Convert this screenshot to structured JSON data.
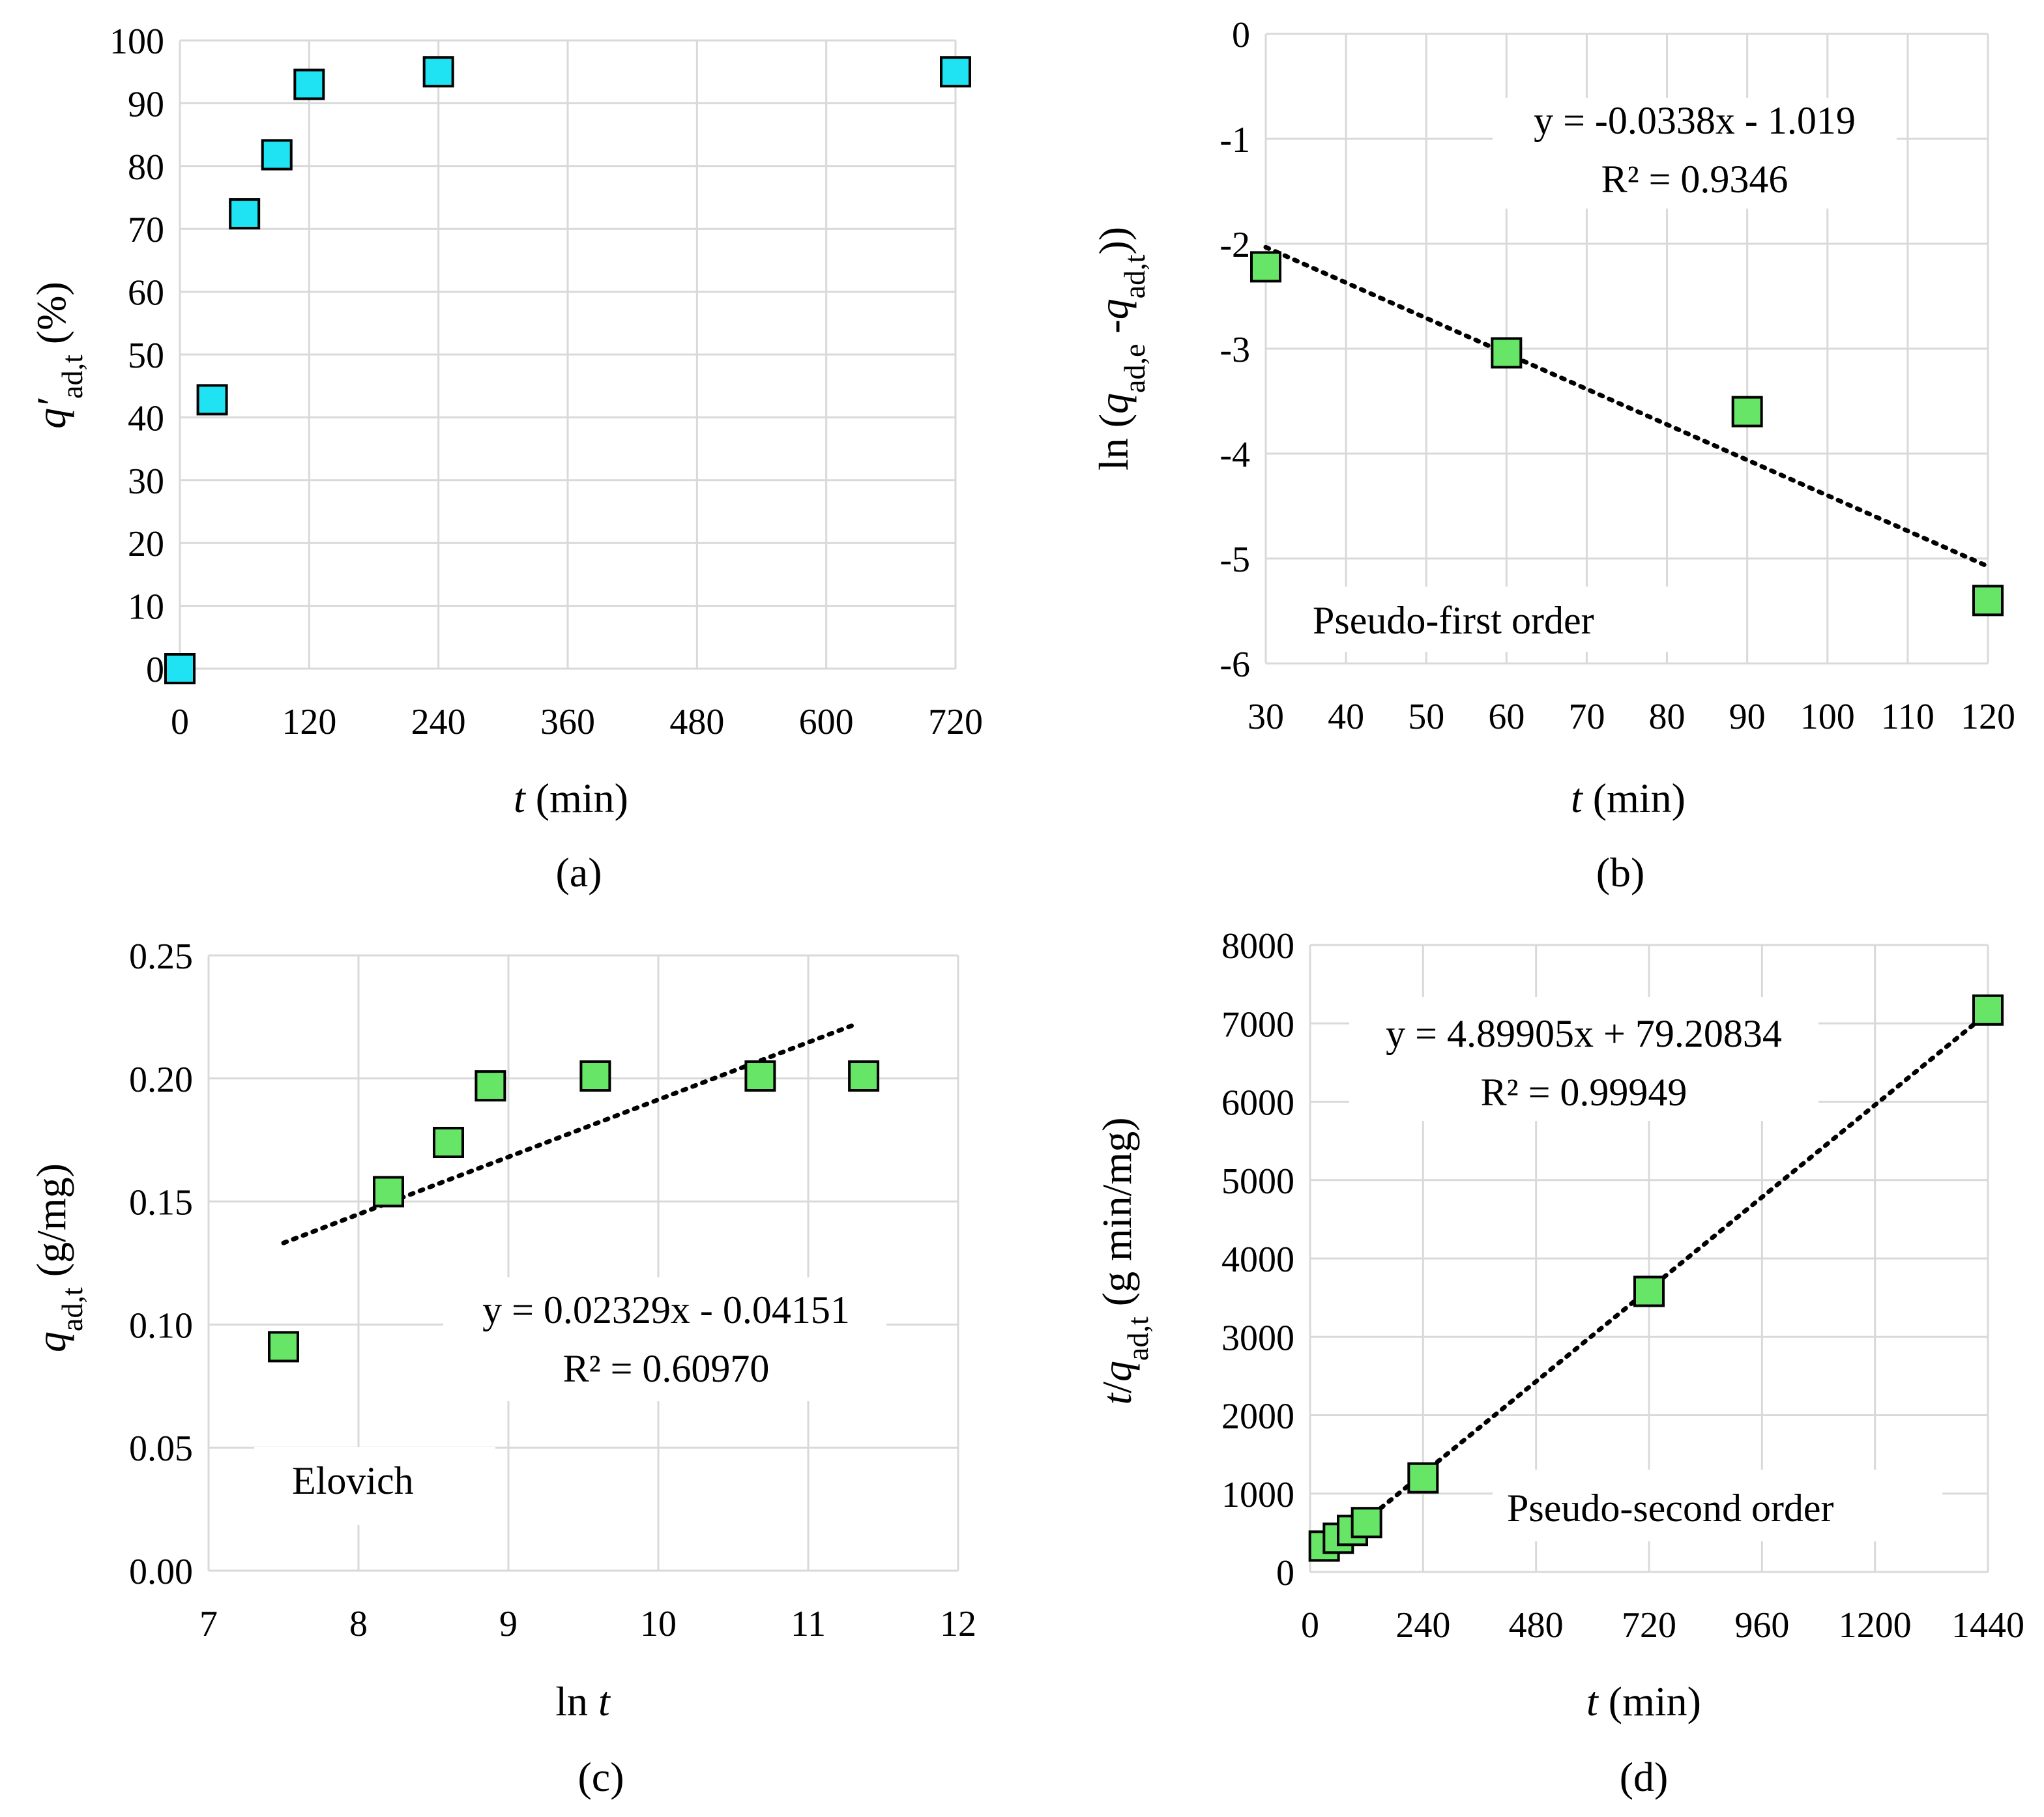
{
  "chart_data": [
    {
      "id": "a",
      "type": "scatter",
      "panel_label": "(a)",
      "xlabel": {
        "italic": "t",
        "rest": " (min)"
      },
      "ylabel": {
        "italic": "q′",
        "sub": "ad,t",
        "rest": " (%)"
      },
      "xlim": [
        0,
        720
      ],
      "ylim": [
        0,
        100
      ],
      "xticks": [
        0,
        120,
        240,
        360,
        480,
        600,
        720
      ],
      "yticks": [
        0,
        10,
        20,
        30,
        40,
        50,
        60,
        70,
        80,
        90,
        100
      ],
      "grid": true,
      "marker_color": "#1fe3f2",
      "x": [
        0,
        30,
        60,
        90,
        120,
        240,
        720
      ],
      "y": [
        0,
        42.8,
        72.4,
        81.8,
        93,
        95,
        95
      ]
    },
    {
      "id": "b",
      "type": "scatter",
      "panel_label": "(b)",
      "xlabel": {
        "italic": "t",
        "rest": " (min)"
      },
      "ylabel": {
        "pre": "ln (",
        "italic1": "q",
        "sub1": "ad,e",
        "mid": " -",
        "italic2": "q",
        "sub2": "ad,t",
        "post": "))"
      },
      "xlim": [
        30,
        120
      ],
      "ylim": [
        -6,
        0
      ],
      "xticks": [
        30,
        40,
        50,
        60,
        70,
        80,
        90,
        100,
        110,
        120
      ],
      "yticks": [
        0,
        -1,
        -2,
        -3,
        -4,
        -5,
        -6
      ],
      "grid": true,
      "marker_color": "#66e566",
      "x": [
        30,
        60,
        90,
        120
      ],
      "y": [
        -2.22,
        -3.04,
        -3.6,
        -5.4
      ],
      "trendline": {
        "slope": -0.0338,
        "intercept": -1.019,
        "x_range": [
          30,
          120
        ]
      },
      "equation": "y = -0.0338x - 1.019",
      "r2": "R² = 0.9346",
      "model_label": "Pseudo-first order"
    },
    {
      "id": "c",
      "type": "scatter",
      "panel_label": "(c)",
      "xlabel": {
        "pre": "ln ",
        "italic": "t"
      },
      "ylabel": {
        "italic": "q",
        "sub": "ad,t",
        "rest": " (g/mg)"
      },
      "xlim": [
        7,
        12
      ],
      "ylim": [
        0,
        0.25
      ],
      "xticks": [
        7,
        8,
        9,
        10,
        11,
        12
      ],
      "yticks": [
        0,
        0.05,
        0.1,
        0.15,
        0.2,
        0.25
      ],
      "ytick_labels": [
        "0.00",
        "0.05",
        "0.10",
        "0.15",
        "0.20",
        "0.25"
      ],
      "grid": true,
      "marker_color": "#66e566",
      "x": [
        7.5,
        8.2,
        8.6,
        8.88,
        9.58,
        10.68,
        11.37
      ],
      "y": [
        0.091,
        0.154,
        0.174,
        0.197,
        0.201,
        0.201,
        0.201
      ],
      "trendline": {
        "slope": 0.02329,
        "intercept": -0.04151,
        "x_range": [
          7.5,
          11.32
        ]
      },
      "equation": "y = 0.02329x - 0.04151",
      "r2": "R² = 0.60970",
      "model_label": "Elovich"
    },
    {
      "id": "d",
      "type": "scatter",
      "panel_label": "(d)",
      "xlabel": {
        "italic": "t",
        "rest": " (min)"
      },
      "ylabel": {
        "italic": "t",
        "mid": "/",
        "italic2": "q",
        "sub": "ad,t",
        "rest": " (g min/mg)"
      },
      "xlim": [
        0,
        1440
      ],
      "ylim": [
        0,
        8000
      ],
      "xticks": [
        0,
        240,
        480,
        720,
        960,
        1200,
        1440
      ],
      "yticks": [
        0,
        1000,
        2000,
        3000,
        4000,
        5000,
        6000,
        7000,
        8000
      ],
      "grid": true,
      "marker_color": "#66e566",
      "x": [
        30,
        60,
        90,
        120,
        240,
        720,
        1440
      ],
      "y": [
        330,
        430,
        530,
        630,
        1200,
        3580,
        7170
      ],
      "trendline": {
        "slope": 4.89905,
        "intercept": 79.20834,
        "x_range": [
          30,
          1440
        ]
      },
      "equation": "y = 4.89905x + 79.20834",
      "r2": "R² = 0.99949",
      "model_label": "Pseudo-second order"
    }
  ]
}
